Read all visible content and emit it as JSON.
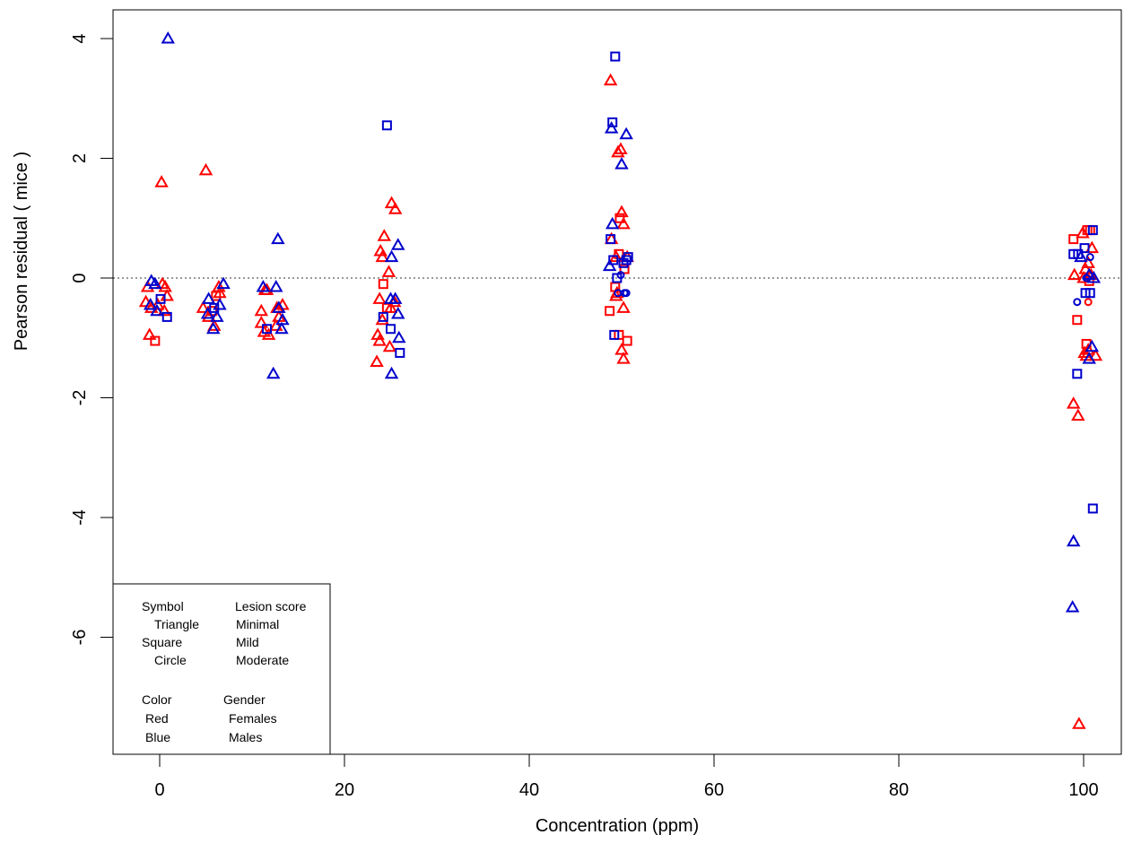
{
  "chart_data": {
    "type": "scatter",
    "title": "",
    "xlabel": "Concentration (ppm)",
    "ylabel": "Pearson residual ( mice )",
    "xlim": [
      -4,
      104
    ],
    "ylim": [
      -8,
      4.5
    ],
    "xticks": [
      0,
      20,
      40,
      60,
      80,
      100
    ],
    "yticks": [
      -6,
      -4,
      -2,
      0,
      2,
      4
    ],
    "reference_line": {
      "y": 0,
      "style": "dotted"
    },
    "grid": false,
    "legend": {
      "placement": "bottom-left",
      "rows": [
        [
          "Symbol",
          "Lesion score"
        ],
        [
          "Triangle",
          "Minimal"
        ],
        [
          "Square",
          "Mild"
        ],
        [
          "Circle",
          "Moderate"
        ],
        [
          "",
          ""
        ],
        [
          "Color",
          "Gender"
        ],
        [
          "Red",
          "Females"
        ],
        [
          "Blue",
          "Males"
        ]
      ]
    },
    "colors": {
      "Females": "#ff0000",
      "Males": "#0000cc"
    },
    "series": [
      {
        "name": "Females",
        "color": "#ff0000",
        "points": [
          {
            "x": -1.3,
            "y": -0.15,
            "s": "tri"
          },
          {
            "x": -1.5,
            "y": -0.4,
            "s": "tri"
          },
          {
            "x": -0.9,
            "y": -0.5,
            "s": "tri"
          },
          {
            "x": -1.1,
            "y": -0.95,
            "s": "tri"
          },
          {
            "x": -0.5,
            "y": -1.05,
            "s": "sq"
          },
          {
            "x": 0.2,
            "y": 1.6,
            "s": "tri"
          },
          {
            "x": 0.3,
            "y": -0.1,
            "s": "tri"
          },
          {
            "x": 0.5,
            "y": -0.55,
            "s": "tri"
          },
          {
            "x": 0.8,
            "y": -0.3,
            "s": "tri"
          },
          {
            "x": -0.2,
            "y": -0.45,
            "s": "tri"
          },
          {
            "x": 0.6,
            "y": -0.15,
            "s": "tri"
          },
          {
            "x": 5.0,
            "y": 1.8,
            "s": "tri"
          },
          {
            "x": 4.7,
            "y": -0.5,
            "s": "tri"
          },
          {
            "x": 5.3,
            "y": -0.65,
            "s": "tri"
          },
          {
            "x": 5.7,
            "y": -0.55,
            "s": "sq"
          },
          {
            "x": 6.1,
            "y": -0.3,
            "s": "sq"
          },
          {
            "x": 6.5,
            "y": -0.25,
            "s": "tri"
          },
          {
            "x": 5.9,
            "y": -0.8,
            "s": "tri"
          },
          {
            "x": 6.4,
            "y": -0.15,
            "s": "tri"
          },
          {
            "x": 11.0,
            "y": -0.55,
            "s": "tri"
          },
          {
            "x": 11.3,
            "y": -0.9,
            "s": "tri"
          },
          {
            "x": 11.6,
            "y": -0.2,
            "s": "tri"
          },
          {
            "x": 11.8,
            "y": -0.95,
            "s": "tri"
          },
          {
            "x": 12.7,
            "y": -0.5,
            "s": "tri"
          },
          {
            "x": 12.9,
            "y": -0.65,
            "s": "tri"
          },
          {
            "x": 13.3,
            "y": -0.45,
            "s": "tri"
          },
          {
            "x": 11.0,
            "y": -0.75,
            "s": "tri"
          },
          {
            "x": 12.6,
            "y": -0.8,
            "s": "tri"
          },
          {
            "x": 11.4,
            "y": -0.2,
            "s": "tri"
          },
          {
            "x": 23.6,
            "y": -0.95,
            "s": "tri"
          },
          {
            "x": 23.8,
            "y": -1.05,
            "s": "tri"
          },
          {
            "x": 23.5,
            "y": -1.4,
            "s": "tri"
          },
          {
            "x": 23.9,
            "y": 0.45,
            "s": "tri"
          },
          {
            "x": 24.1,
            "y": 0.35,
            "s": "tri"
          },
          {
            "x": 24.3,
            "y": 0.7,
            "s": "tri"
          },
          {
            "x": 24.2,
            "y": -0.1,
            "s": "sq"
          },
          {
            "x": 24.1,
            "y": -0.7,
            "s": "tri"
          },
          {
            "x": 23.8,
            "y": -0.35,
            "s": "tri"
          },
          {
            "x": 24.6,
            "y": -0.5,
            "s": "sq"
          },
          {
            "x": 24.8,
            "y": 0.1,
            "s": "tri"
          },
          {
            "x": 25.1,
            "y": 1.25,
            "s": "tri"
          },
          {
            "x": 25.5,
            "y": 1.15,
            "s": "tri"
          },
          {
            "x": 25.0,
            "y": -0.5,
            "s": "tri"
          },
          {
            "x": 25.4,
            "y": -0.4,
            "s": "tri"
          },
          {
            "x": 24.9,
            "y": -1.15,
            "s": "tri"
          },
          {
            "x": 48.8,
            "y": 3.3,
            "s": "tri"
          },
          {
            "x": 49.6,
            "y": 2.1,
            "s": "tri"
          },
          {
            "x": 49.9,
            "y": 2.15,
            "s": "tri"
          },
          {
            "x": 50.0,
            "y": 1.1,
            "s": "tri"
          },
          {
            "x": 49.8,
            "y": 1.0,
            "s": "sq"
          },
          {
            "x": 50.2,
            "y": 0.9,
            "s": "tri"
          },
          {
            "x": 48.9,
            "y": 0.65,
            "s": "tri"
          },
          {
            "x": 49.4,
            "y": 0.35,
            "s": "tri"
          },
          {
            "x": 49.7,
            "y": 0.4,
            "s": "sq"
          },
          {
            "x": 49.3,
            "y": -0.15,
            "s": "sq"
          },
          {
            "x": 49.5,
            "y": -0.25,
            "s": "tri"
          },
          {
            "x": 48.7,
            "y": -0.55,
            "s": "sq"
          },
          {
            "x": 50.2,
            "y": -0.5,
            "s": "tri"
          },
          {
            "x": 49.7,
            "y": -0.95,
            "s": "sq"
          },
          {
            "x": 50.0,
            "y": -1.2,
            "s": "tri"
          },
          {
            "x": 50.2,
            "y": -1.35,
            "s": "tri"
          },
          {
            "x": 50.6,
            "y": -1.05,
            "s": "sq"
          },
          {
            "x": 50.6,
            "y": 0.35,
            "s": "tri"
          },
          {
            "x": 50.3,
            "y": 0.15,
            "s": "sq"
          },
          {
            "x": 49.4,
            "y": -0.3,
            "s": "tri"
          },
          {
            "x": 98.9,
            "y": 0.65,
            "s": "sq"
          },
          {
            "x": 99.0,
            "y": 0.05,
            "s": "tri"
          },
          {
            "x": 99.3,
            "y": -0.7,
            "s": "sq"
          },
          {
            "x": 98.9,
            "y": -2.1,
            "s": "tri"
          },
          {
            "x": 99.4,
            "y": -2.3,
            "s": "tri"
          },
          {
            "x": 99.5,
            "y": -7.45,
            "s": "tri"
          },
          {
            "x": 99.9,
            "y": 0.75,
            "s": "tri"
          },
          {
            "x": 100.4,
            "y": 0.8,
            "s": "sq"
          },
          {
            "x": 100.7,
            "y": 0.8,
            "s": "sq"
          },
          {
            "x": 100.9,
            "y": 0.5,
            "s": "tri"
          },
          {
            "x": 100.2,
            "y": 0.15,
            "s": "tri"
          },
          {
            "x": 100.5,
            "y": 0.25,
            "s": "tri"
          },
          {
            "x": 100.8,
            "y": 0.05,
            "s": "tri"
          },
          {
            "x": 100.0,
            "y": 0.0,
            "s": "tri"
          },
          {
            "x": 100.6,
            "y": -0.05,
            "s": "sq"
          },
          {
            "x": 100.4,
            "y": 0.0,
            "s": "circ"
          },
          {
            "x": 100.5,
            "y": -0.4,
            "s": "circ"
          },
          {
            "x": 100.3,
            "y": -1.1,
            "s": "sq"
          },
          {
            "x": 100.1,
            "y": -1.25,
            "s": "tri"
          },
          {
            "x": 100.5,
            "y": -1.2,
            "s": "tri"
          },
          {
            "x": 100.3,
            "y": -1.3,
            "s": "tri"
          },
          {
            "x": 101.3,
            "y": -1.3,
            "s": "tri"
          }
        ]
      },
      {
        "name": "Males",
        "color": "#0000cc",
        "points": [
          {
            "x": 0.9,
            "y": 4.0,
            "s": "tri"
          },
          {
            "x": -0.9,
            "y": -0.05,
            "s": "tri"
          },
          {
            "x": -0.5,
            "y": -0.1,
            "s": "tri"
          },
          {
            "x": -1.0,
            "y": -0.45,
            "s": "tri"
          },
          {
            "x": -0.3,
            "y": -0.55,
            "s": "tri"
          },
          {
            "x": 0.1,
            "y": -0.35,
            "s": "sq"
          },
          {
            "x": 0.8,
            "y": -0.65,
            "s": "sq"
          },
          {
            "x": 5.3,
            "y": -0.35,
            "s": "tri"
          },
          {
            "x": 5.2,
            "y": -0.6,
            "s": "tri"
          },
          {
            "x": 5.9,
            "y": -0.5,
            "s": "sq"
          },
          {
            "x": 5.8,
            "y": -0.85,
            "s": "tri"
          },
          {
            "x": 6.2,
            "y": -0.65,
            "s": "tri"
          },
          {
            "x": 6.5,
            "y": -0.45,
            "s": "tri"
          },
          {
            "x": 6.9,
            "y": -0.1,
            "s": "tri"
          },
          {
            "x": 11.2,
            "y": -0.15,
            "s": "tri"
          },
          {
            "x": 11.6,
            "y": -0.85,
            "s": "sq"
          },
          {
            "x": 12.3,
            "y": -1.6,
            "s": "tri"
          },
          {
            "x": 12.8,
            "y": 0.65,
            "s": "tri"
          },
          {
            "x": 12.6,
            "y": -0.15,
            "s": "tri"
          },
          {
            "x": 12.9,
            "y": -0.5,
            "s": "tri"
          },
          {
            "x": 13.2,
            "y": -0.85,
            "s": "tri"
          },
          {
            "x": 13.3,
            "y": -0.7,
            "s": "tri"
          },
          {
            "x": 24.6,
            "y": 2.55,
            "s": "sq"
          },
          {
            "x": 24.2,
            "y": -0.65,
            "s": "sq"
          },
          {
            "x": 25.1,
            "y": 0.35,
            "s": "tri"
          },
          {
            "x": 25.0,
            "y": -0.35,
            "s": "tri"
          },
          {
            "x": 25.5,
            "y": -0.35,
            "s": "tri"
          },
          {
            "x": 25.0,
            "y": -0.85,
            "s": "sq"
          },
          {
            "x": 25.1,
            "y": -1.6,
            "s": "tri"
          },
          {
            "x": 25.8,
            "y": 0.55,
            "s": "tri"
          },
          {
            "x": 25.8,
            "y": -0.6,
            "s": "tri"
          },
          {
            "x": 25.9,
            "y": -1.0,
            "s": "tri"
          },
          {
            "x": 26.0,
            "y": -1.25,
            "s": "sq"
          },
          {
            "x": 49.3,
            "y": 3.7,
            "s": "sq"
          },
          {
            "x": 49.0,
            "y": 2.6,
            "s": "sq"
          },
          {
            "x": 48.9,
            "y": 2.5,
            "s": "tri"
          },
          {
            "x": 50.5,
            "y": 2.4,
            "s": "tri"
          },
          {
            "x": 50.0,
            "y": 1.9,
            "s": "tri"
          },
          {
            "x": 49.0,
            "y": 0.9,
            "s": "tri"
          },
          {
            "x": 48.8,
            "y": 0.65,
            "s": "sq"
          },
          {
            "x": 48.7,
            "y": 0.2,
            "s": "tri"
          },
          {
            "x": 49.1,
            "y": 0.3,
            "s": "sq"
          },
          {
            "x": 49.5,
            "y": 0.0,
            "s": "sq"
          },
          {
            "x": 49.6,
            "y": -0.25,
            "s": "circ"
          },
          {
            "x": 49.9,
            "y": 0.05,
            "s": "circ"
          },
          {
            "x": 50.3,
            "y": -0.25,
            "s": "circ"
          },
          {
            "x": 50.5,
            "y": -0.25,
            "s": "circ"
          },
          {
            "x": 50.5,
            "y": 0.3,
            "s": "sq"
          },
          {
            "x": 50.7,
            "y": 0.35,
            "s": "sq"
          },
          {
            "x": 49.2,
            "y": -0.95,
            "s": "sq"
          },
          {
            "x": 50.2,
            "y": 0.25,
            "s": "sq"
          },
          {
            "x": 98.9,
            "y": 0.4,
            "s": "sq"
          },
          {
            "x": 99.4,
            "y": 0.4,
            "s": "sq"
          },
          {
            "x": 99.3,
            "y": -0.4,
            "s": "circ"
          },
          {
            "x": 99.3,
            "y": -1.6,
            "s": "sq"
          },
          {
            "x": 98.9,
            "y": -4.4,
            "s": "tri"
          },
          {
            "x": 98.8,
            "y": -5.5,
            "s": "tri"
          },
          {
            "x": 99.7,
            "y": 0.35,
            "s": "tri"
          },
          {
            "x": 100.1,
            "y": 0.5,
            "s": "sq"
          },
          {
            "x": 100.3,
            "y": 0.0,
            "s": "circ"
          },
          {
            "x": 100.2,
            "y": -0.25,
            "s": "sq"
          },
          {
            "x": 100.7,
            "y": -0.25,
            "s": "sq"
          },
          {
            "x": 101.0,
            "y": 0.8,
            "s": "sq"
          },
          {
            "x": 101.1,
            "y": 0.0,
            "s": "tri"
          },
          {
            "x": 100.6,
            "y": 0.05,
            "s": "tri"
          },
          {
            "x": 100.7,
            "y": 0.35,
            "s": "circ"
          },
          {
            "x": 100.6,
            "y": -1.35,
            "s": "tri"
          },
          {
            "x": 100.9,
            "y": -1.15,
            "s": "tri"
          },
          {
            "x": 101.0,
            "y": -3.85,
            "s": "sq"
          }
        ]
      }
    ]
  }
}
